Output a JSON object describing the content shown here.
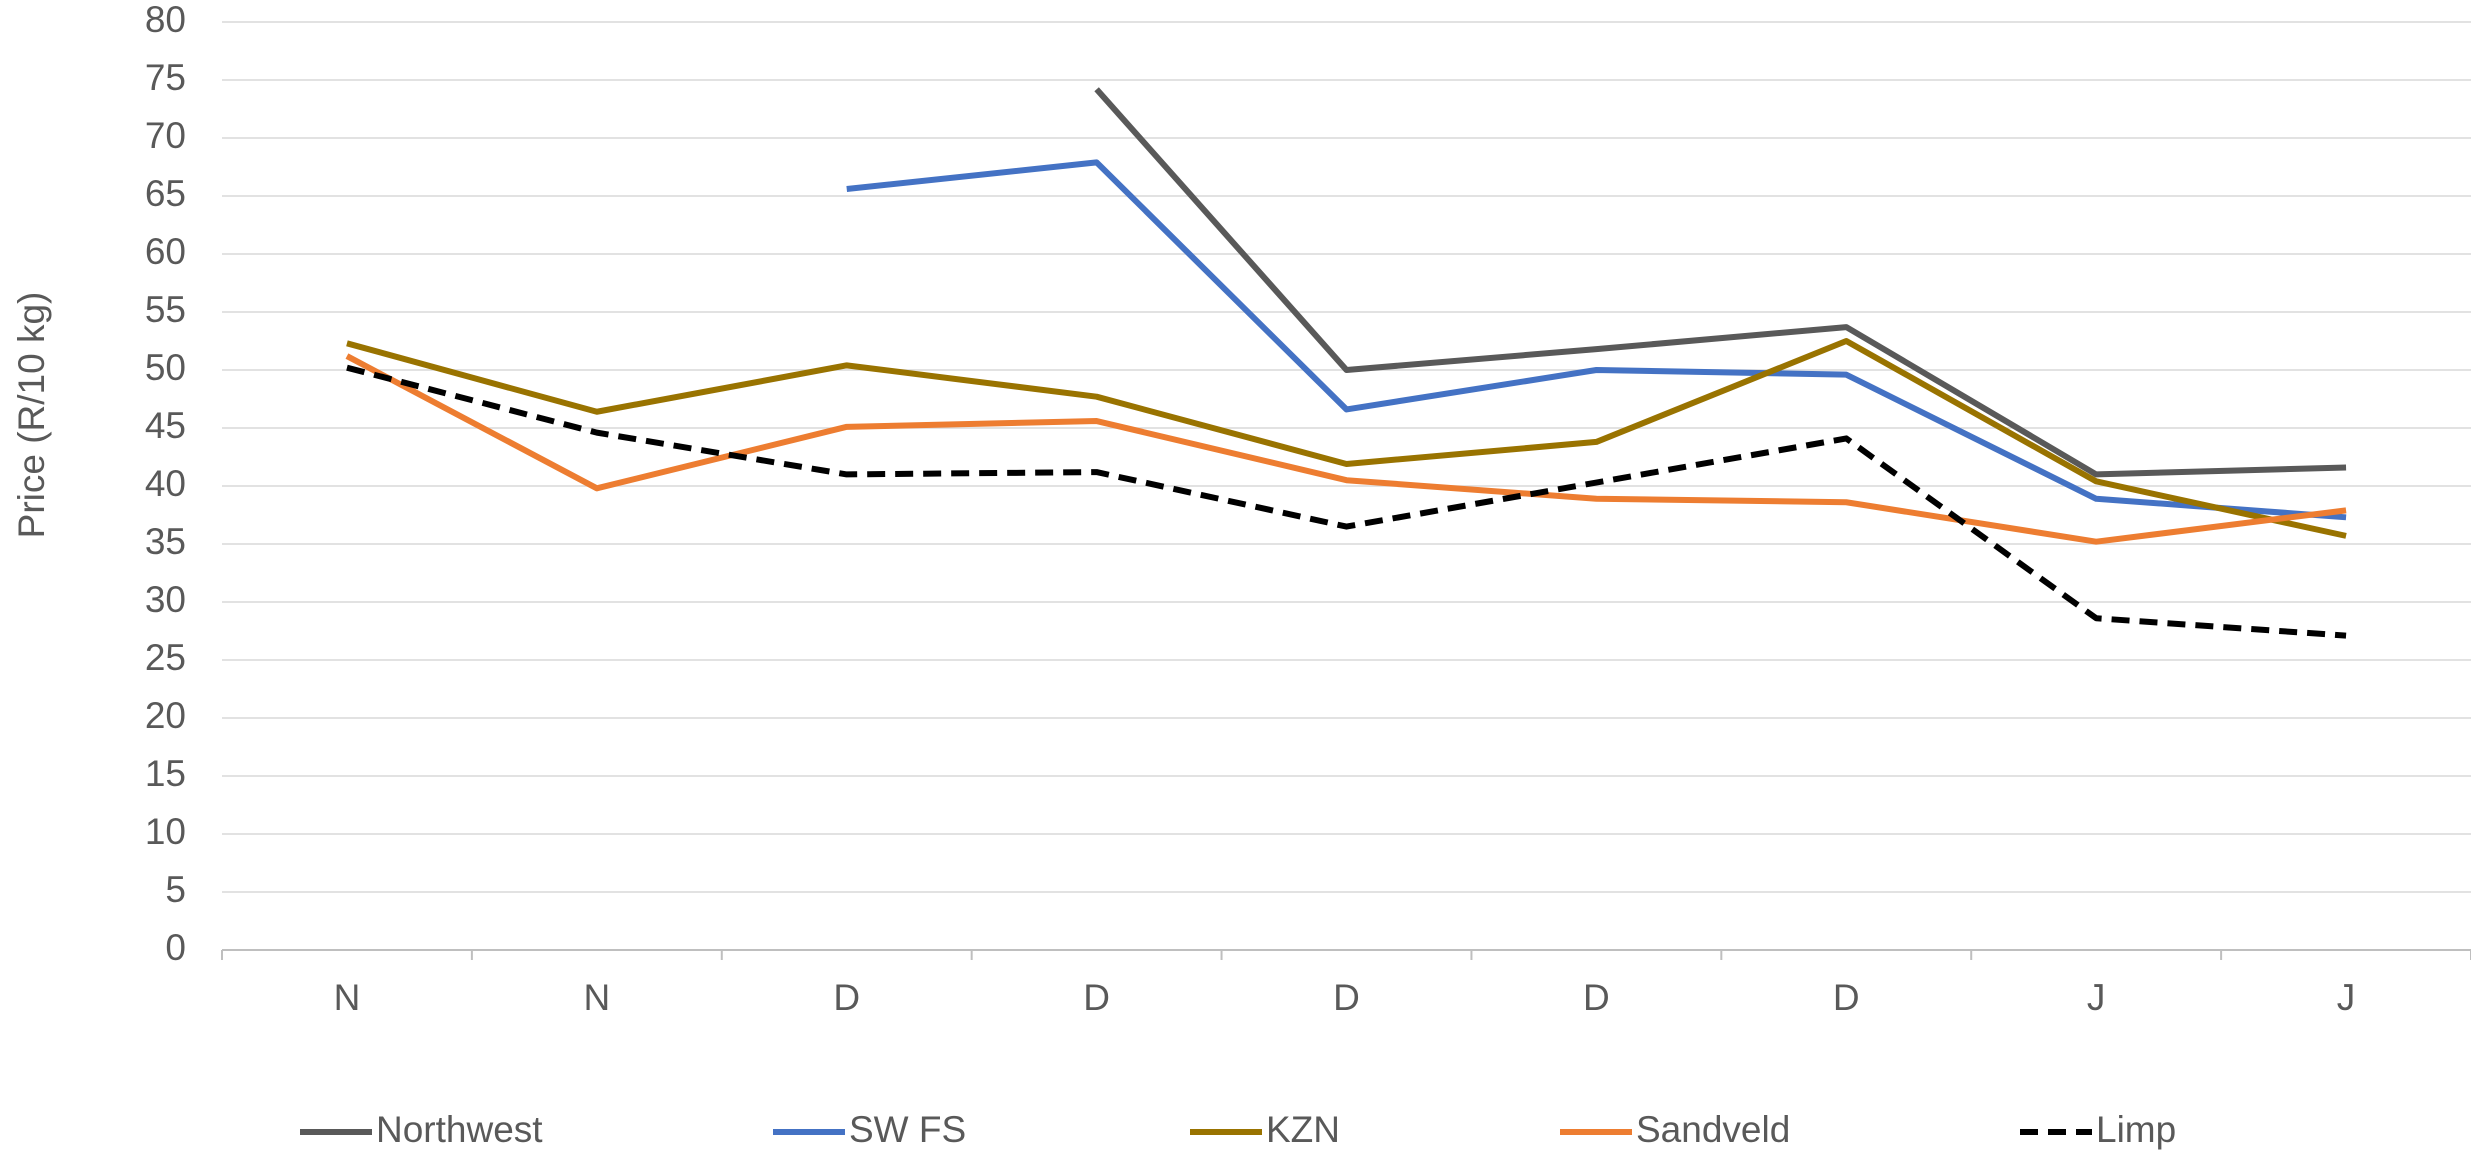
{
  "chart_data": {
    "type": "line",
    "y_label": "Price (R/10 kg)",
    "categories": [
      "N",
      "N",
      "D",
      "D",
      "D",
      "D",
      "D",
      "J",
      "J"
    ],
    "series": [
      {
        "name": "Northwest",
        "color": "#595959",
        "values": [
          null,
          null,
          null,
          74.2,
          50,
          51.8,
          53.7,
          41,
          41.6
        ]
      },
      {
        "name": "SW FS",
        "color": "#4472c4",
        "values": [
          null,
          null,
          65.6,
          67.9,
          46.6,
          50,
          49.6,
          38.9,
          37.3
        ]
      },
      {
        "name": "KZN",
        "color": "#997300",
        "values": [
          52.3,
          46.4,
          50.4,
          47.7,
          41.9,
          43.8,
          52.5,
          40.4,
          35.7
        ]
      },
      {
        "name": "Sandveld",
        "color": "#ed7d31",
        "values": [
          51.2,
          39.8,
          45.1,
          45.6,
          40.5,
          38.9,
          38.6,
          35.2,
          37.9
        ]
      },
      {
        "name": "Limp",
        "color": "#000000",
        "dashed": true,
        "values": [
          50.2,
          44.6,
          41,
          41.2,
          36.5,
          40.3,
          44.1,
          28.6,
          27.1
        ]
      }
    ],
    "ylim": [
      0,
      80
    ],
    "yticks": [
      0,
      5,
      10,
      15,
      20,
      25,
      30,
      35,
      40,
      45,
      50,
      55,
      60,
      65,
      70,
      75,
      80
    ],
    "grid": true,
    "legend": "bottom"
  }
}
